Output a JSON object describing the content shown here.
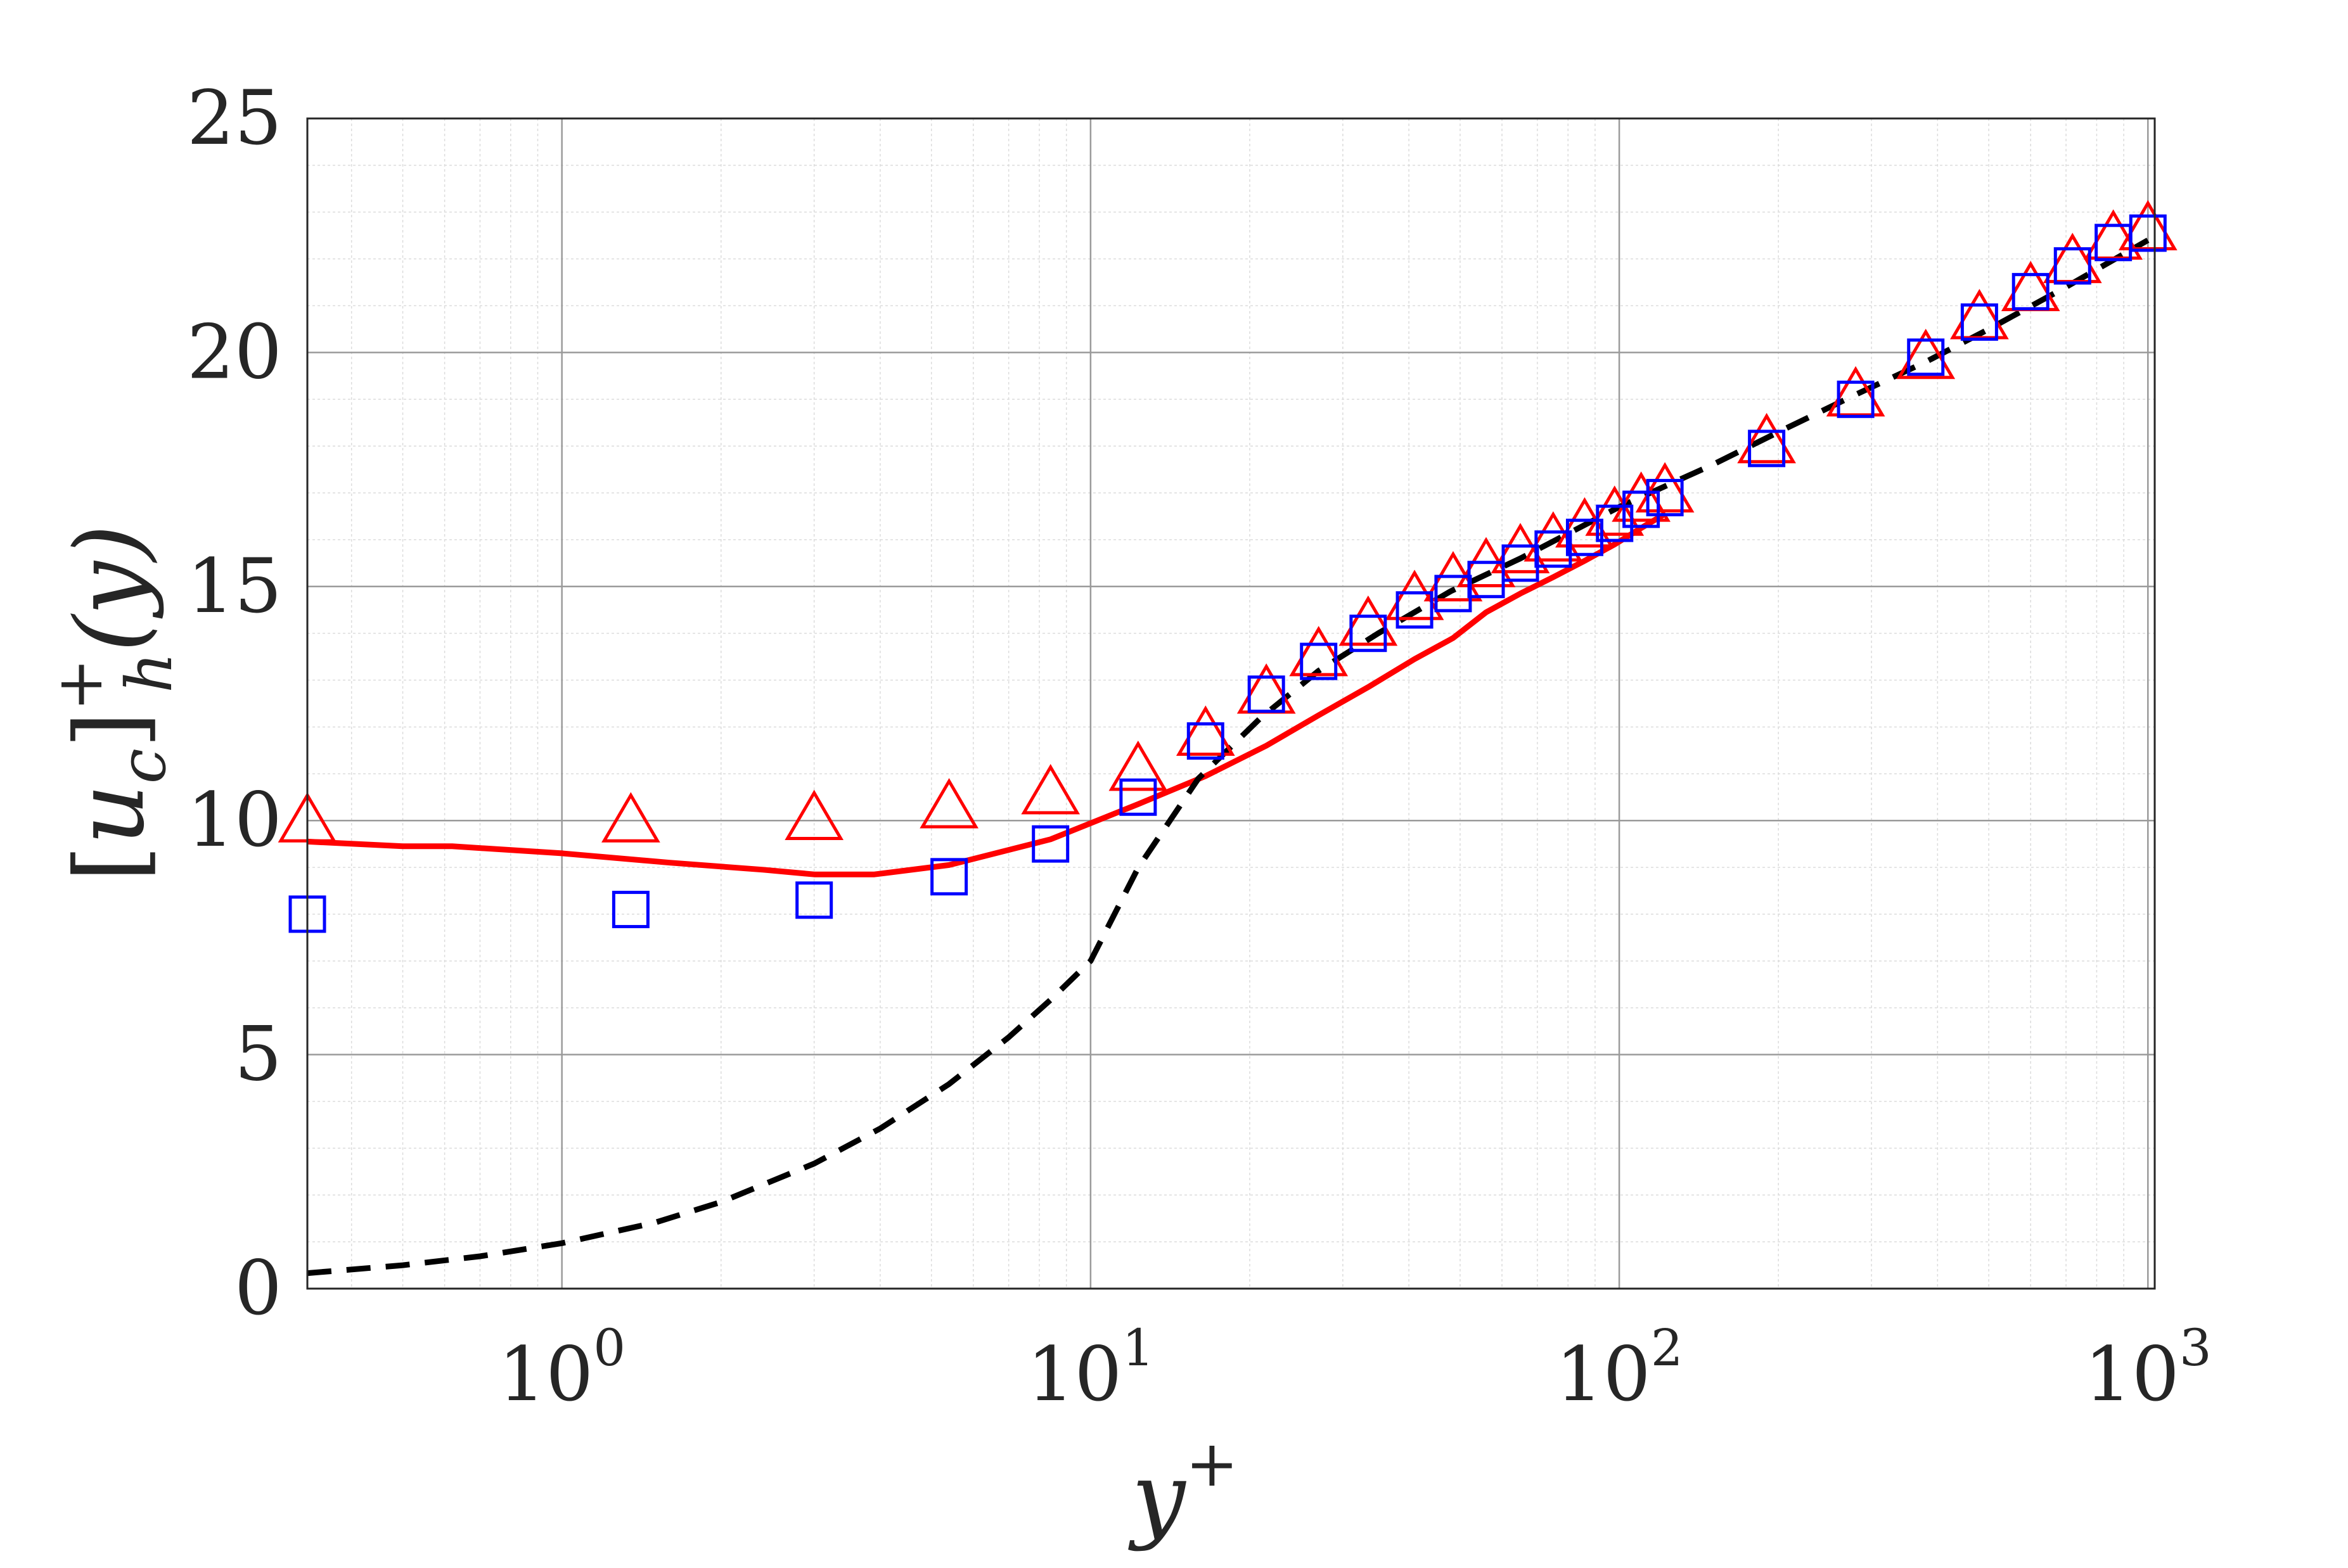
{
  "chart_data": {
    "type": "line",
    "x_scale": "log",
    "xlim": [
      0.33,
      1030
    ],
    "ylim": [
      0,
      25
    ],
    "grid": true,
    "minor_grid": true,
    "x_ticks": [
      1,
      10,
      100,
      1000
    ],
    "y_ticks": [
      0,
      5,
      10,
      15,
      20,
      25
    ],
    "y_tick_labels": [
      "0",
      "5",
      "10",
      "15",
      "20",
      "25"
    ],
    "xlabel": "y",
    "xlabel_sup": "+",
    "ylabel_parts": {
      "open": "[",
      "u": "u",
      "u_sub": "c",
      "close": "]",
      "sup": "+",
      "sub": "h",
      "arg": "(y)"
    },
    "legend": "none",
    "series": [
      {
        "style": "solid-line",
        "color": "#ff0000",
        "x": [
          0.33,
          0.5,
          0.62,
          1.0,
          1.6,
          2.4,
          3.0,
          3.9,
          5.4,
          8.4,
          12.3,
          16.5,
          21.5,
          27.0,
          33.5,
          41.0,
          48.5,
          56.0,
          65.0,
          75.0,
          86.0,
          98.0,
          110.0,
          122.0
        ],
        "y": [
          9.55,
          9.45,
          9.45,
          9.3,
          9.1,
          8.95,
          8.85,
          8.85,
          9.05,
          9.6,
          10.35,
          10.95,
          11.6,
          12.25,
          12.85,
          13.45,
          13.9,
          14.45,
          14.85,
          15.2,
          15.55,
          15.9,
          16.25,
          16.55
        ]
      },
      {
        "style": "dashed-line",
        "color": "#000000",
        "x": [
          0.33,
          0.5,
          0.7,
          1.0,
          1.5,
          2.0,
          3.0,
          4.0,
          5.4,
          7.0,
          8.4,
          10.0,
          12.3,
          16.0,
          21.0,
          27.0,
          35.0,
          48.0,
          65.0,
          100.0,
          150.0,
          200.0,
          280.0,
          380.0,
          500.0,
          700.0,
          1000.0
        ],
        "y": [
          0.33,
          0.5,
          0.69,
          0.97,
          1.41,
          1.85,
          2.67,
          3.42,
          4.37,
          5.37,
          6.17,
          7.0,
          8.99,
          10.9,
          12.2,
          13.2,
          14.0,
          14.9,
          15.6,
          16.7,
          17.6,
          18.3,
          19.1,
          19.8,
          20.5,
          21.4,
          22.4
        ]
      },
      {
        "style": "triangle-markers",
        "color": "#ff0000",
        "x": [
          0.33,
          1.35,
          3.0,
          5.4,
          8.4,
          12.3,
          16.5,
          21.5,
          27.0,
          33.5,
          41.0,
          48.5,
          56.0,
          65.0,
          75.0,
          86.0,
          98.0,
          110.0,
          122.0,
          190.0,
          280.0,
          380.0,
          480.0,
          600.0,
          720.0,
          860.0,
          1000.0
        ],
        "y": [
          10.0,
          10.0,
          10.05,
          10.3,
          10.6,
          11.1,
          11.85,
          12.75,
          13.55,
          14.2,
          14.75,
          15.15,
          15.45,
          15.75,
          16.0,
          16.3,
          16.55,
          16.85,
          17.05,
          18.1,
          19.1,
          19.9,
          20.75,
          21.35,
          21.95,
          22.45,
          22.65
        ]
      },
      {
        "style": "square-markers",
        "color": "#0000ff",
        "x": [
          0.33,
          1.35,
          3.0,
          5.4,
          8.4,
          12.3,
          16.5,
          21.5,
          27.0,
          33.5,
          41.0,
          48.5,
          56.0,
          65.0,
          75.0,
          86.0,
          98.0,
          110.0,
          122.0,
          190.0,
          280.0,
          380.0,
          480.0,
          600.0,
          720.0,
          860.0,
          1000.0
        ],
        "y": [
          8.0,
          8.1,
          8.3,
          8.8,
          9.5,
          10.5,
          11.7,
          12.7,
          13.4,
          14.0,
          14.5,
          14.85,
          15.15,
          15.5,
          15.8,
          16.05,
          16.35,
          16.65,
          16.9,
          17.95,
          19.0,
          19.9,
          20.65,
          21.3,
          21.85,
          22.35,
          22.55
        ]
      }
    ]
  }
}
